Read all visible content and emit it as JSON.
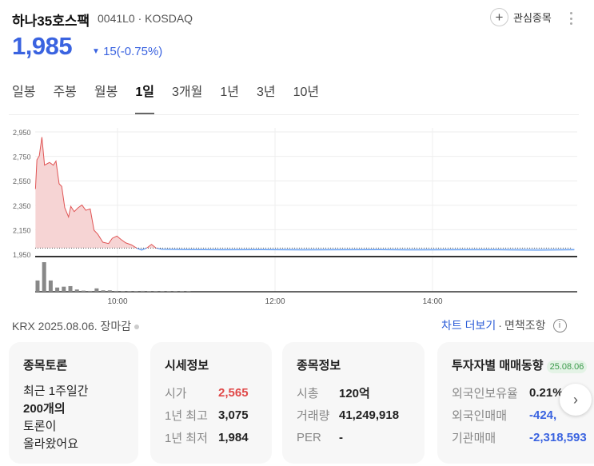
{
  "header": {
    "name": "하나35호스팩",
    "code": "0041L0 · KOSDAQ",
    "price": "1,985",
    "change_arrow": "▼",
    "change": "15(-0.75%)",
    "watch_label": "관심종목"
  },
  "tabs": [
    "일봉",
    "주봉",
    "월봉",
    "1일",
    "3개월",
    "1년",
    "3년",
    "10년"
  ],
  "active_tab": "1일",
  "colors": {
    "up": "#e04848",
    "down": "#3a63e0",
    "line_up": "#e05555",
    "line_down": "#4a8ef0"
  },
  "chart_data": {
    "type": "line",
    "x_unit": "minutes since 09:00",
    "y_ticks": [
      2950,
      2750,
      2550,
      2350,
      2150,
      1950
    ],
    "ylim": [
      1950,
      2950
    ],
    "x_ticks": [
      {
        "m": 60,
        "label": "10:00"
      },
      {
        "m": 180,
        "label": "12:00"
      },
      {
        "m": 300,
        "label": "14:00"
      }
    ],
    "xlim": [
      -2.5,
      408
    ],
    "prev_close": 2000,
    "series": [
      [
        -2.5,
        2483
      ],
      [
        -1.4,
        2722
      ],
      [
        0.4,
        2754
      ],
      [
        2.4,
        2907
      ],
      [
        4.4,
        2678
      ],
      [
        8.2,
        2700
      ],
      [
        11.1,
        2678
      ],
      [
        13.1,
        2711
      ],
      [
        15.5,
        2526
      ],
      [
        17.5,
        2504
      ],
      [
        19.8,
        2330
      ],
      [
        22.7,
        2254
      ],
      [
        24.4,
        2341
      ],
      [
        27,
        2298
      ],
      [
        30,
        2330
      ],
      [
        32.9,
        2352
      ],
      [
        35.8,
        2309
      ],
      [
        39.2,
        2320
      ],
      [
        42.1,
        2146
      ],
      [
        45,
        2113
      ],
      [
        48.8,
        2048
      ],
      [
        53.2,
        2037
      ],
      [
        56,
        2080
      ],
      [
        59.5,
        2098
      ],
      [
        62.7,
        2070
      ],
      [
        66.2,
        2043
      ],
      [
        70.6,
        2026
      ],
      [
        74.9,
        1998
      ],
      [
        78.4,
        1983
      ],
      [
        82.2,
        2000
      ],
      [
        85.9,
        2030
      ],
      [
        89.4,
        2000
      ],
      [
        93.8,
        1989
      ],
      [
        110,
        1987
      ],
      [
        140,
        1985
      ],
      [
        170,
        1986
      ],
      [
        200,
        1984
      ],
      [
        230,
        1985
      ],
      [
        260,
        1986
      ],
      [
        290,
        1984
      ],
      [
        320,
        1985
      ],
      [
        350,
        1985
      ],
      [
        380,
        1983
      ],
      [
        408,
        1985
      ]
    ],
    "volume": [
      40,
      105,
      40,
      15,
      18,
      20,
      8,
      4,
      3,
      12,
      5,
      5,
      3,
      2,
      2,
      2,
      3,
      2,
      2,
      2,
      2,
      2,
      2,
      2
    ]
  },
  "footer": {
    "left": "KRX  2025.08.06. 장마감",
    "more": "차트 더보기",
    "sep": "·",
    "disclaimer": "면책조항",
    "info": "i"
  },
  "cards": {
    "forum": {
      "title": "종목토론",
      "lines": [
        "최근 1주일간",
        "200개의",
        "토론이",
        "올라왔어요"
      ]
    },
    "quote": {
      "title": "시세정보",
      "rows": [
        {
          "k": "시가",
          "v": "2,565"
        },
        {
          "k": "1년 최고",
          "v": "3,075"
        },
        {
          "k": "1년 최저",
          "v": "1,984"
        }
      ]
    },
    "info": {
      "title": "종목정보",
      "rows": [
        {
          "k": "시총",
          "v": "120억"
        },
        {
          "k": "거래량",
          "v": "41,249,918"
        },
        {
          "k": "PER",
          "v": "-"
        }
      ]
    },
    "investor": {
      "title": "투자자별 매매동향",
      "date": "25.08.06",
      "rows": [
        {
          "k": "외국인보유율",
          "v": "0.21%"
        },
        {
          "k": "외국인매매",
          "v": "-424,"
        },
        {
          "k": "기관매매",
          "v": "-2,318,593"
        }
      ]
    }
  },
  "next_icon": "chevron-right-icon"
}
